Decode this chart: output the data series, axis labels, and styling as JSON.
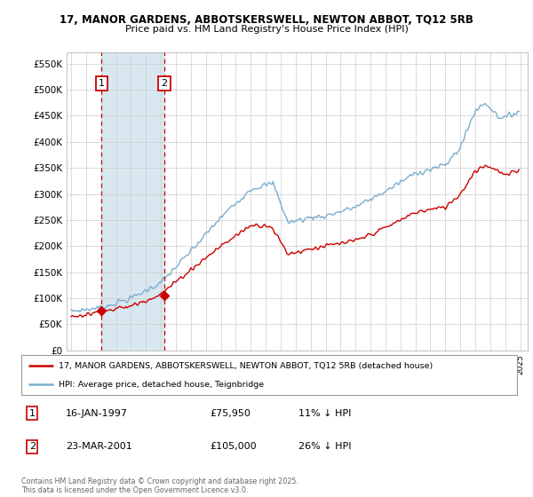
{
  "title_line1": "17, MANOR GARDENS, ABBOTSKERSWELL, NEWTON ABBOT, TQ12 5RB",
  "title_line2": "Price paid vs. HM Land Registry's House Price Index (HPI)",
  "ytick_values": [
    0,
    50000,
    100000,
    150000,
    200000,
    250000,
    300000,
    350000,
    400000,
    450000,
    500000,
    550000
  ],
  "ylim": [
    0,
    572000
  ],
  "xlim_start": 1994.7,
  "xlim_end": 2025.5,
  "sale1_date": 1997.04,
  "sale1_price": 75950,
  "sale1_label": "1",
  "sale2_date": 2001.22,
  "sale2_price": 105000,
  "sale2_label": "2",
  "red_line_color": "#cc0000",
  "blue_line_color": "#7aadcc",
  "sale_marker_color": "#cc0000",
  "dashed_line_color": "#cc0000",
  "shade_color": "#d8e8f0",
  "background_color": "#ffffff",
  "grid_color": "#cccccc",
  "legend_label_red": "17, MANOR GARDENS, ABBOTSKERSWELL, NEWTON ABBOT, TQ12 5RB (detached house)",
  "legend_label_blue": "HPI: Average price, detached house, Teignbridge",
  "footnote": "Contains HM Land Registry data © Crown copyright and database right 2025.\nThis data is licensed under the Open Government Licence v3.0.",
  "table_rows": [
    {
      "num": "1",
      "date": "16-JAN-1997",
      "price": "£75,950",
      "pct": "11% ↓ HPI"
    },
    {
      "num": "2",
      "date": "23-MAR-2001",
      "price": "£105,000",
      "pct": "26% ↓ HPI"
    }
  ]
}
